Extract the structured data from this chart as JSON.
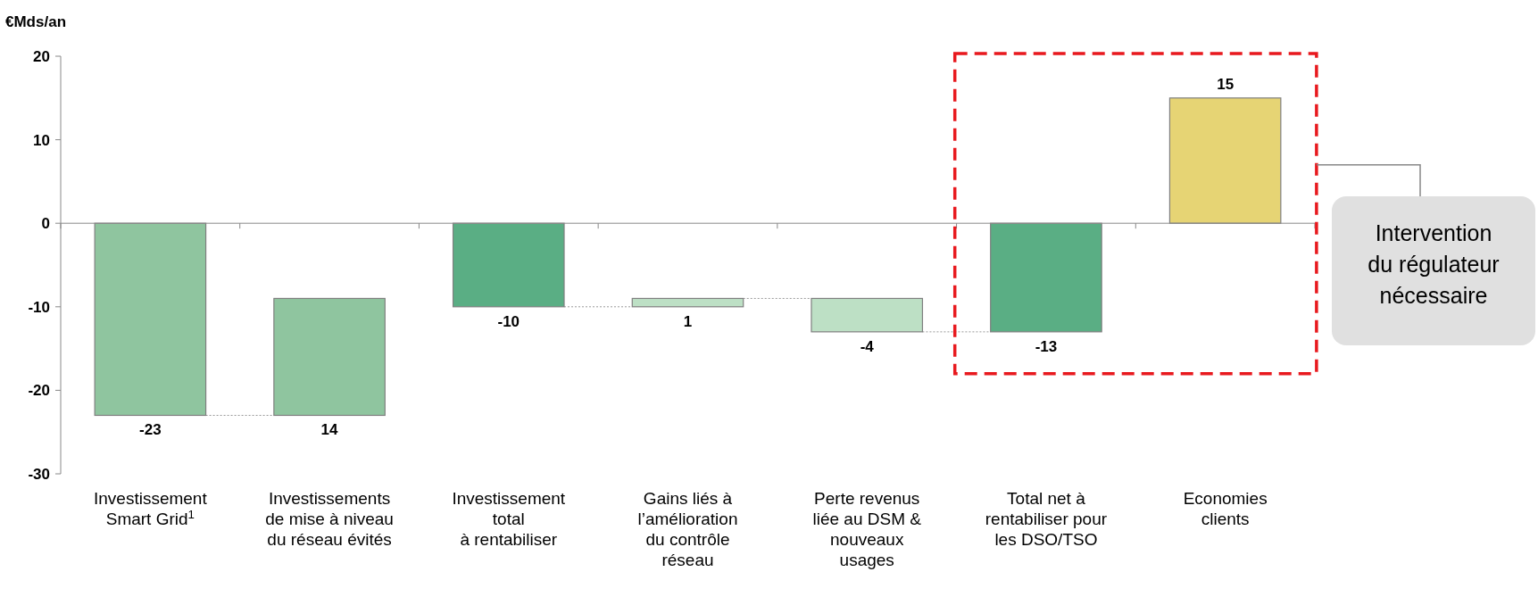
{
  "chart_data": {
    "type": "bar",
    "ylabel": "€Mds/an",
    "categories": [
      "Investissement\nSmart Grid$^{1}$",
      "Investissements\nde mise à niveau\ndu réseau évités",
      "Investissement\ntotal\nà rentabiliser",
      "Gains liés à\nl’amélioration\ndu contrôle\nréseau",
      "Perte revenus\nliée au DSM &\nnouveaux\nusages",
      "Total net à\nrentabiliser pour\nles DSO/TSO",
      "Economies\nclients"
    ],
    "values": [
      -23,
      14,
      -10,
      1,
      -4,
      -13,
      15
    ],
    "base": [
      0,
      -23,
      0,
      -10,
      -9,
      0,
      0
    ],
    "colors": [
      "#8fc59f",
      "#8fc59f",
      "#5aae84",
      "#bde0c5",
      "#bde0c5",
      "#5aae84",
      "#e6d474"
    ],
    "ylim": [
      -30,
      20
    ],
    "yticks": [
      -30,
      -20,
      -10,
      0,
      10,
      20
    ],
    "data_labels": true,
    "annotations": [
      "Intervention\ndu régulateur\nnécessaire"
    ]
  }
}
